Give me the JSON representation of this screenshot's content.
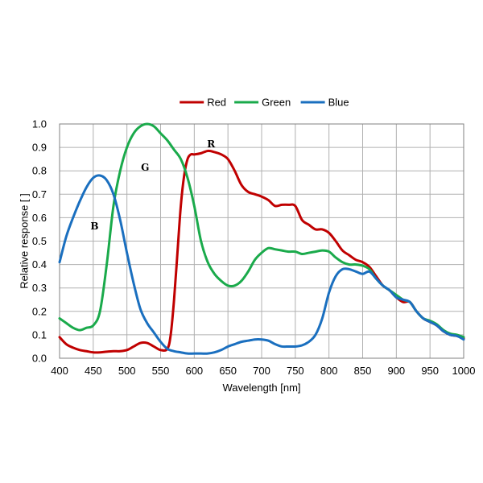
{
  "chart_data": {
    "type": "line",
    "title": "",
    "xlabel": "Wavelength [nm]",
    "ylabel": "Relative response [ ]",
    "xlim": [
      400,
      1000
    ],
    "ylim": [
      0,
      1.0
    ],
    "grid": true,
    "legend_placement": "top-center",
    "x_ticks": [
      400,
      450,
      500,
      550,
      600,
      650,
      700,
      750,
      800,
      850,
      900,
      950,
      1000
    ],
    "y_ticks": [
      0.0,
      0.1,
      0.2,
      0.3,
      0.4,
      0.5,
      0.6,
      0.7,
      0.8,
      0.9,
      1.0
    ],
    "x_tick_labels": [
      "400",
      "450",
      "500",
      "550",
      "600",
      "650",
      "700",
      "750",
      "800",
      "850",
      "900",
      "950",
      "1000"
    ],
    "y_tick_labels": [
      "0.0",
      "0.1",
      "0.2",
      "0.3",
      "0.4",
      "0.5",
      "0.6",
      "0.7",
      "0.8",
      "0.9",
      "1.0"
    ],
    "series": [
      {
        "name": "Red",
        "color": "#c00000",
        "x": [
          400,
          410,
          420,
          430,
          440,
          450,
          460,
          470,
          480,
          490,
          500,
          510,
          520,
          530,
          540,
          550,
          560,
          565,
          570,
          575,
          580,
          585,
          590,
          595,
          600,
          610,
          620,
          630,
          640,
          650,
          660,
          670,
          680,
          690,
          700,
          710,
          720,
          730,
          740,
          750,
          760,
          770,
          780,
          790,
          800,
          810,
          820,
          830,
          840,
          850,
          860,
          870,
          880,
          890,
          900,
          910,
          920,
          930,
          940,
          950,
          960,
          970,
          980,
          990,
          1000
        ],
        "y": [
          0.09,
          0.06,
          0.045,
          0.035,
          0.03,
          0.025,
          0.025,
          0.028,
          0.03,
          0.03,
          0.035,
          0.05,
          0.065,
          0.065,
          0.05,
          0.035,
          0.04,
          0.1,
          0.25,
          0.45,
          0.65,
          0.78,
          0.85,
          0.87,
          0.87,
          0.875,
          0.885,
          0.88,
          0.87,
          0.85,
          0.8,
          0.74,
          0.71,
          0.7,
          0.69,
          0.675,
          0.65,
          0.655,
          0.655,
          0.65,
          0.59,
          0.57,
          0.55,
          0.55,
          0.535,
          0.5,
          0.46,
          0.44,
          0.42,
          0.41,
          0.39,
          0.35,
          0.31,
          0.29,
          0.26,
          0.24,
          0.24,
          0.2,
          0.17,
          0.155,
          0.14,
          0.115,
          0.1,
          0.095,
          0.085
        ]
      },
      {
        "name": "Green",
        "color": "#1aaa4b",
        "x": [
          400,
          410,
          420,
          430,
          440,
          450,
          460,
          470,
          480,
          490,
          500,
          510,
          520,
          530,
          540,
          550,
          560,
          570,
          580,
          590,
          600,
          610,
          620,
          630,
          640,
          650,
          660,
          670,
          680,
          690,
          700,
          710,
          720,
          730,
          740,
          750,
          760,
          770,
          780,
          790,
          800,
          810,
          820,
          830,
          840,
          850,
          860,
          870,
          880,
          890,
          900,
          910,
          920,
          930,
          940,
          950,
          960,
          970,
          980,
          990,
          1000
        ],
        "y": [
          0.17,
          0.15,
          0.13,
          0.12,
          0.13,
          0.14,
          0.2,
          0.4,
          0.65,
          0.8,
          0.9,
          0.96,
          0.99,
          1.0,
          0.99,
          0.96,
          0.93,
          0.89,
          0.85,
          0.77,
          0.65,
          0.5,
          0.41,
          0.36,
          0.33,
          0.31,
          0.31,
          0.33,
          0.37,
          0.42,
          0.45,
          0.47,
          0.465,
          0.46,
          0.455,
          0.455,
          0.445,
          0.45,
          0.455,
          0.46,
          0.455,
          0.43,
          0.41,
          0.4,
          0.4,
          0.395,
          0.38,
          0.34,
          0.31,
          0.29,
          0.27,
          0.25,
          0.24,
          0.2,
          0.17,
          0.16,
          0.145,
          0.12,
          0.105,
          0.1,
          0.09
        ]
      },
      {
        "name": "Blue",
        "color": "#1a6fbf",
        "x": [
          400,
          410,
          420,
          430,
          440,
          450,
          460,
          470,
          480,
          490,
          500,
          510,
          520,
          530,
          540,
          550,
          560,
          570,
          580,
          590,
          600,
          610,
          620,
          630,
          640,
          650,
          660,
          670,
          680,
          690,
          700,
          710,
          720,
          730,
          740,
          750,
          760,
          770,
          780,
          790,
          800,
          810,
          820,
          830,
          840,
          850,
          860,
          870,
          880,
          890,
          900,
          910,
          920,
          930,
          940,
          950,
          960,
          970,
          980,
          990,
          1000
        ],
        "y": [
          0.41,
          0.52,
          0.6,
          0.67,
          0.73,
          0.77,
          0.78,
          0.76,
          0.7,
          0.59,
          0.45,
          0.32,
          0.21,
          0.15,
          0.11,
          0.07,
          0.04,
          0.03,
          0.025,
          0.02,
          0.02,
          0.02,
          0.02,
          0.025,
          0.035,
          0.05,
          0.06,
          0.07,
          0.075,
          0.08,
          0.08,
          0.075,
          0.06,
          0.05,
          0.05,
          0.05,
          0.055,
          0.07,
          0.1,
          0.17,
          0.28,
          0.35,
          0.38,
          0.38,
          0.37,
          0.36,
          0.37,
          0.34,
          0.31,
          0.29,
          0.26,
          0.25,
          0.24,
          0.2,
          0.17,
          0.155,
          0.14,
          0.115,
          0.1,
          0.095,
          0.08
        ]
      }
    ],
    "annotations": [
      {
        "text": "R",
        "x": 625,
        "y": 0.9
      },
      {
        "text": "G",
        "x": 527,
        "y": 0.8
      },
      {
        "text": "B",
        "x": 452,
        "y": 0.55
      }
    ]
  }
}
